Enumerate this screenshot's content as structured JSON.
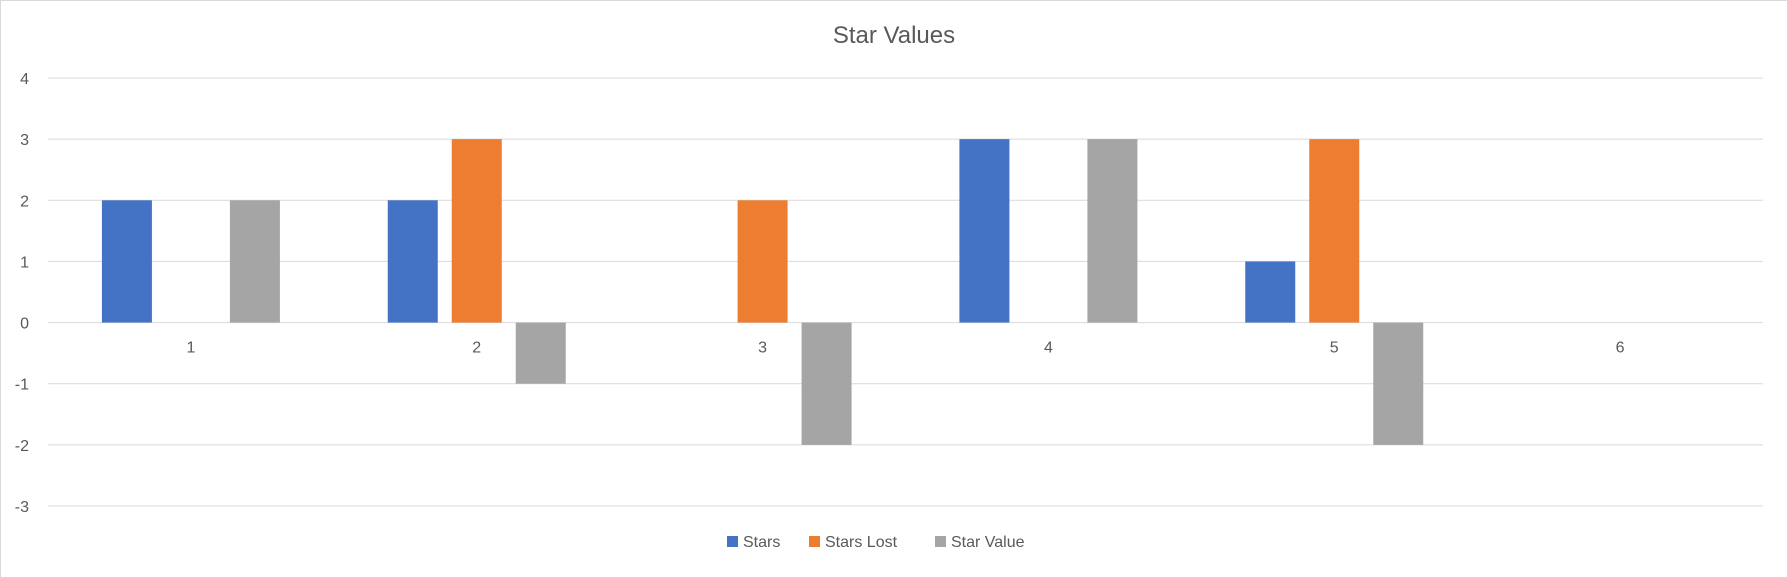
{
  "chart_data": {
    "type": "bar",
    "title": "Star Values",
    "categories": [
      "1",
      "2",
      "3",
      "4",
      "5",
      "6"
    ],
    "series": [
      {
        "name": "Stars",
        "color": "#4472c4",
        "values": [
          2,
          2,
          0,
          3,
          1,
          null
        ]
      },
      {
        "name": "Stars Lost",
        "color": "#ed7d31",
        "values": [
          0,
          3,
          2,
          0,
          3,
          null
        ]
      },
      {
        "name": "Star Value",
        "color": "#a5a5a5",
        "values": [
          2,
          -1,
          -2,
          3,
          -2,
          null
        ]
      }
    ],
    "ylim": [
      -3,
      4
    ],
    "yticks": [
      4,
      3,
      2,
      1,
      0,
      -1,
      -2,
      -3
    ],
    "grid": true,
    "legend": "bottom"
  }
}
